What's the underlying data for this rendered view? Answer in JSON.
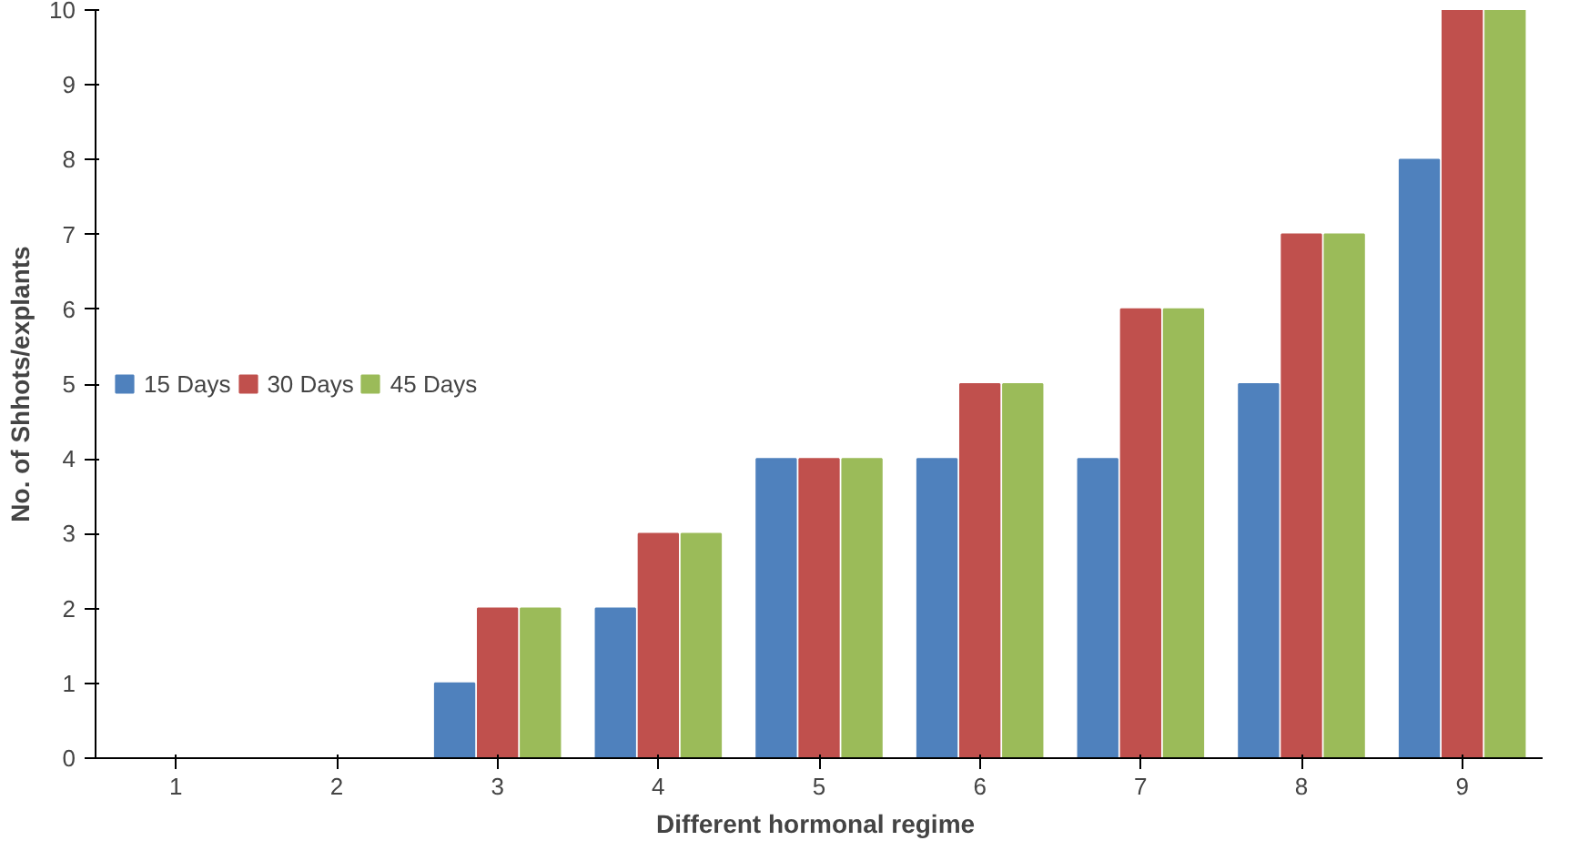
{
  "chart_data": {
    "type": "bar",
    "xlabel": "Different hormonal  regime",
    "ylabel": "No. of Shhots/explants",
    "categories": [
      "1",
      "2",
      "3",
      "4",
      "5",
      "6",
      "7",
      "8",
      "9"
    ],
    "series": [
      {
        "name": "15 Days",
        "color": "#4f81bd",
        "values": [
          0,
          0,
          1,
          2,
          4,
          4,
          4,
          5,
          8
        ]
      },
      {
        "name": "30 Days",
        "color": "#c0504d",
        "values": [
          0,
          0,
          2,
          3,
          4,
          5,
          6,
          7,
          10
        ]
      },
      {
        "name": "45 Days",
        "color": "#9bbb59",
        "values": [
          0,
          0,
          2,
          3,
          4,
          5,
          6,
          7,
          10
        ]
      }
    ],
    "ylim": [
      0,
      10
    ],
    "yticks": [
      0,
      1,
      2,
      3,
      4,
      5,
      6,
      7,
      8,
      9,
      10
    ],
    "grid": false,
    "legend": "left"
  }
}
